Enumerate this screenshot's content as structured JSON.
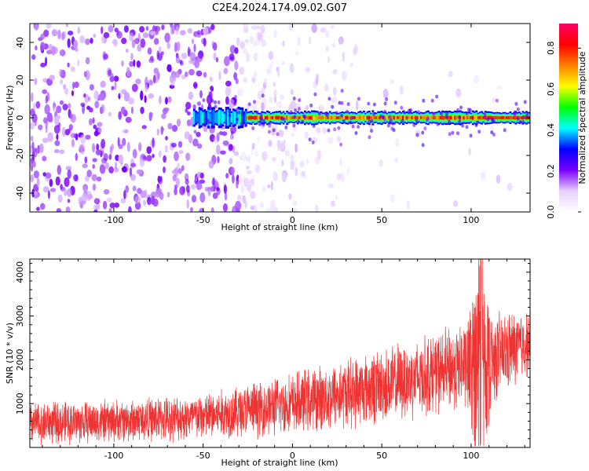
{
  "title": "C2E4.2024.174.09.02.G07",
  "chart_data": [
    {
      "type": "heatmap",
      "xlabel": "Height of straight line (km)",
      "ylabel": "Frequency (Hz)",
      "xlim": [
        -147,
        133
      ],
      "ylim": [
        -50,
        50
      ],
      "xticks": [
        -100,
        -50,
        0,
        50,
        100
      ],
      "yticks": [
        -40,
        -20,
        0,
        20,
        40
      ],
      "colorbar": {
        "label": "Normalized spectral amplitude",
        "range": [
          0,
          0.92
        ],
        "ticks": [
          0.0,
          0.2,
          0.4,
          0.6,
          0.8
        ],
        "colors": [
          "#ffffff",
          "#e6d0ff",
          "#7a00ff",
          "#0000ff",
          "#00ffff",
          "#00ff00",
          "#ffff00",
          "#ff8000",
          "#ff0000",
          "#ff0066"
        ]
      },
      "segments": [
        {
          "x_range": [
            -147,
            -27
          ],
          "description_level": 0.15,
          "pattern": "broadband noise"
        },
        {
          "x_range": [
            -55,
            -25
          ],
          "frequency_center": 0,
          "peak_amplitude": 0.45
        },
        {
          "x_range": [
            -25,
            105
          ],
          "frequency_center": 0,
          "peak_amplitude": 0.9
        },
        {
          "x_range": [
            105,
            133
          ],
          "frequency_center": 0,
          "peak_amplitude": 0.9
        }
      ]
    },
    {
      "type": "line",
      "xlabel": "Height of straight line (km)",
      "ylabel": "SNR (10 * v/v)",
      "xlim": [
        -147,
        133
      ],
      "ylim": [
        0,
        4300
      ],
      "xticks": [
        -100,
        -50,
        0,
        50,
        100
      ],
      "yticks": [
        1000,
        2000,
        3000,
        4000
      ],
      "series": [
        {
          "color": "#ee3333",
          "trend": [
            {
              "x": -147,
              "mean": 550,
              "spread": 450
            },
            {
              "x": -100,
              "mean": 600,
              "spread": 450
            },
            {
              "x": -50,
              "mean": 700,
              "spread": 500
            },
            {
              "x": 0,
              "mean": 1000,
              "spread": 650
            },
            {
              "x": 50,
              "mean": 1400,
              "spread": 800
            },
            {
              "x": 90,
              "mean": 1800,
              "spread": 900
            },
            {
              "x": 110,
              "mean": 2000,
              "spread": 1000
            },
            {
              "x": 133,
              "mean": 2400,
              "spread": 700
            }
          ],
          "peak": {
            "x": 106,
            "value": 4300
          }
        }
      ]
    }
  ]
}
